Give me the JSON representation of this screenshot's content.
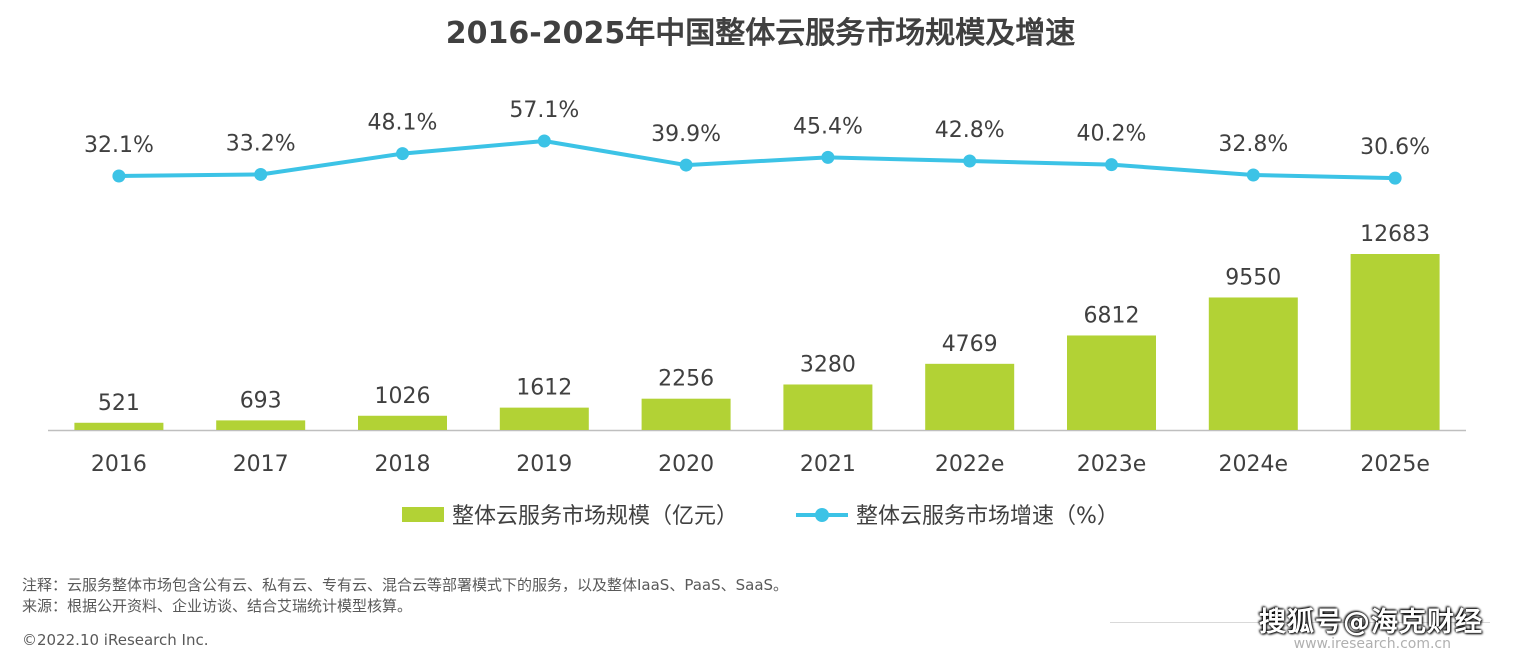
{
  "chart_data": {
    "type": "bar",
    "title": "2016-2025年中国整体云服务市场规模及增速",
    "categories": [
      "2016",
      "2017",
      "2018",
      "2019",
      "2020",
      "2021",
      "2022e",
      "2023e",
      "2024e",
      "2025e"
    ],
    "series": [
      {
        "name": "整体云服务市场规模（亿元）",
        "type": "bar",
        "values": [
          521,
          693,
          1026,
          1612,
          2256,
          3280,
          4769,
          6812,
          9550,
          12683
        ],
        "labels": [
          "521",
          "693",
          "1026",
          "1612",
          "2256",
          "3280",
          "4769",
          "6812",
          "9550",
          "12683"
        ],
        "color": "#b2d235"
      },
      {
        "name": "整体云服务市场增速（%）",
        "type": "line",
        "values": [
          32.1,
          33.2,
          48.1,
          57.1,
          39.9,
          45.4,
          42.8,
          40.2,
          32.8,
          30.6
        ],
        "labels": [
          "32.1%",
          "33.2%",
          "48.1%",
          "57.1%",
          "39.9%",
          "45.4%",
          "42.8%",
          "40.2%",
          "32.8%",
          "30.6%"
        ],
        "color": "#3cc3e6"
      }
    ],
    "legend": "bottom-center",
    "grid": false
  },
  "notes": {
    "note": "注释：云服务整体市场包含公有云、私有云、专有云、混合云等部署模式下的服务，以及整体IaaS、PaaS、SaaS。",
    "source": "来源：根据公开资料、企业访谈、结合艾瑞统计模型核算。"
  },
  "copyright": "©2022.10 iResearch Inc.",
  "watermark": {
    "text": "搜狐号@海克财经",
    "url": "www.iresearch.com.cn"
  }
}
